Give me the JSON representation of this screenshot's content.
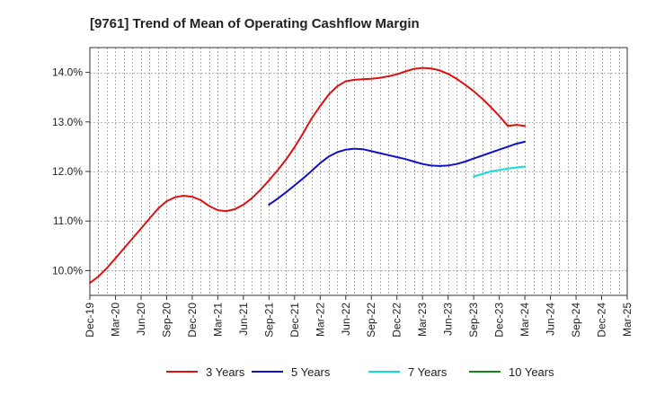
{
  "chart_data": {
    "type": "line",
    "title": "[9761]  Trend of Mean of Operating Cashflow Margin",
    "xlabel": "",
    "ylabel": "",
    "y_unit": "%",
    "ylim": [
      9.5,
      14.5
    ],
    "yticks": [
      10.0,
      11.0,
      12.0,
      13.0,
      14.0
    ],
    "ytick_labels": [
      "10.0%",
      "11.0%",
      "12.0%",
      "13.0%",
      "14.0%"
    ],
    "x_tick_labels": [
      "Dec-19",
      "Mar-20",
      "Jun-20",
      "Sep-20",
      "Dec-20",
      "Mar-21",
      "Jun-21",
      "Sep-21",
      "Dec-21",
      "Mar-22",
      "Jun-22",
      "Sep-22",
      "Dec-22",
      "Mar-23",
      "Jun-23",
      "Sep-23",
      "Dec-23",
      "Mar-24",
      "Jun-24",
      "Sep-24",
      "Dec-24",
      "Mar-25"
    ],
    "x_start": "Dec-19",
    "grid": true,
    "legend_position": "bottom",
    "series": [
      {
        "name": "3 Years",
        "color": "#dd1111",
        "x": [
          "Dec-19",
          "Jan-20",
          "Feb-20",
          "Mar-20",
          "Apr-20",
          "May-20",
          "Jun-20",
          "Jul-20",
          "Aug-20",
          "Sep-20",
          "Oct-20",
          "Nov-20",
          "Dec-20",
          "Jan-21",
          "Feb-21",
          "Mar-21",
          "Apr-21",
          "May-21",
          "Jun-21",
          "Jul-21",
          "Aug-21",
          "Sep-21",
          "Oct-21",
          "Nov-21",
          "Dec-21",
          "Jan-22",
          "Feb-22",
          "Mar-22",
          "Apr-22",
          "May-22",
          "Jun-22",
          "Jul-22",
          "Aug-22",
          "Sep-22",
          "Oct-22",
          "Nov-22",
          "Dec-22",
          "Jan-23",
          "Feb-23",
          "Mar-23",
          "Apr-23",
          "May-23",
          "Jun-23",
          "Jul-23",
          "Aug-23",
          "Sep-23",
          "Oct-23",
          "Nov-23",
          "Dec-23",
          "Jan-24",
          "Feb-24",
          "Mar-24"
        ],
        "values": [
          9.75,
          9.88,
          10.05,
          10.25,
          10.45,
          10.65,
          10.85,
          11.05,
          11.25,
          11.4,
          11.48,
          11.51,
          11.49,
          11.42,
          11.3,
          11.22,
          11.2,
          11.24,
          11.33,
          11.46,
          11.63,
          11.82,
          12.02,
          12.24,
          12.49,
          12.77,
          13.07,
          13.32,
          13.55,
          13.72,
          13.82,
          13.85,
          13.86,
          13.87,
          13.89,
          13.92,
          13.96,
          14.02,
          14.07,
          14.09,
          14.08,
          14.04,
          13.97,
          13.87,
          13.75,
          13.62,
          13.47,
          13.3,
          13.12,
          12.92,
          12.94,
          12.92
        ],
        "note_last_point": "Mar-24"
      },
      {
        "name": "5 Years",
        "color": "#1111cc",
        "x": [
          "Sep-21",
          "Oct-21",
          "Nov-21",
          "Dec-21",
          "Jan-22",
          "Feb-22",
          "Mar-22",
          "Apr-22",
          "May-22",
          "Jun-22",
          "Jul-22",
          "Aug-22",
          "Sep-22",
          "Oct-22",
          "Nov-22",
          "Dec-22",
          "Jan-23",
          "Feb-23",
          "Mar-23",
          "Apr-23",
          "May-23",
          "Jun-23",
          "Jul-23",
          "Aug-23",
          "Sep-23",
          "Oct-23",
          "Nov-23",
          "Dec-23",
          "Jan-24",
          "Feb-24",
          "Mar-24"
        ],
        "values": [
          11.33,
          11.45,
          11.58,
          11.72,
          11.86,
          12.01,
          12.17,
          12.3,
          12.39,
          12.44,
          12.46,
          12.45,
          12.41,
          12.37,
          12.33,
          12.29,
          12.25,
          12.2,
          12.15,
          12.12,
          12.11,
          12.12,
          12.15,
          12.2,
          12.26,
          12.32,
          12.38,
          12.44,
          12.5,
          12.56,
          12.6
        ]
      },
      {
        "name": "7 Years",
        "color": "#11dddd",
        "x": [
          "Sep-23",
          "Oct-23",
          "Nov-23",
          "Dec-23",
          "Jan-24",
          "Feb-24",
          "Mar-24"
        ],
        "values": [
          11.9,
          11.95,
          12.0,
          12.03,
          12.06,
          12.08,
          12.1
        ]
      },
      {
        "name": "10 Years",
        "color": "#118811",
        "x": [],
        "values": []
      }
    ]
  }
}
